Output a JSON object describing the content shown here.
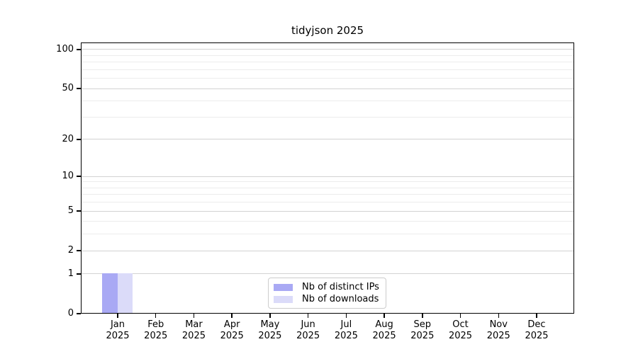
{
  "chart_data": {
    "type": "bar",
    "title": "tidyjson 2025",
    "year": "2025",
    "categories": [
      "Jan",
      "Feb",
      "Mar",
      "Apr",
      "May",
      "Jun",
      "Jul",
      "Aug",
      "Sep",
      "Oct",
      "Nov",
      "Dec"
    ],
    "series": [
      {
        "name": "Nb of distinct IPs",
        "color": "#a9a9f4",
        "values": [
          1,
          0,
          0,
          0,
          0,
          0,
          0,
          0,
          0,
          0,
          0,
          0
        ]
      },
      {
        "name": "Nb of downloads",
        "color": "#dbdbf9",
        "values": [
          1,
          0,
          0,
          0,
          0,
          0,
          0,
          0,
          0,
          0,
          0,
          0
        ]
      }
    ],
    "y_axis": {
      "scale": "log1p",
      "ticks": [
        0,
        1,
        2,
        5,
        10,
        20,
        50,
        100
      ],
      "minor_ticks": [
        3,
        4,
        6,
        7,
        8,
        9,
        30,
        40,
        60,
        70,
        80,
        90
      ],
      "max": 113
    },
    "xlabel": "",
    "ylabel": "",
    "grid": "horizontal",
    "legend_position": "bottom-center"
  }
}
